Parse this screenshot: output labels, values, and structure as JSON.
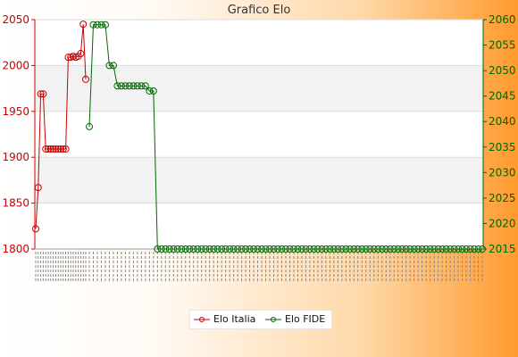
{
  "chart_data": {
    "type": "line",
    "title": "Grafico Elo",
    "legend_position": "bottom",
    "grid": true,
    "colors": {
      "italia": "#cc0000",
      "fide": "#006600"
    },
    "y_left": {
      "ticks": [
        1800,
        1850,
        1900,
        1950,
        2000,
        2050
      ],
      "range": [
        1800,
        2050
      ]
    },
    "y_right": {
      "ticks": [
        2015,
        2020,
        2025,
        2030,
        2035,
        2040,
        2045,
        2050,
        2055,
        2060
      ],
      "range": [
        2015,
        2060
      ]
    },
    "x_tick_labels_note": "illegible rotated date labels",
    "series": [
      {
        "name": "Elo Italia",
        "axis": "left",
        "values": [
          1822,
          1867,
          1969,
          1969,
          1909,
          1909,
          1909,
          1909,
          1909,
          1909,
          1909,
          1909,
          1909,
          2009,
          2009,
          2010,
          2009,
          2010,
          2013,
          2045,
          1985
        ]
      },
      {
        "name": "Elo FIDE",
        "axis": "right",
        "values": [
          2039,
          2059,
          2059,
          2059,
          2059,
          2051,
          2051,
          2047,
          2047,
          2047,
          2047,
          2047,
          2047,
          2047,
          2047,
          2046,
          2046,
          2015,
          2015,
          2015,
          2015,
          2015,
          2015,
          2015,
          2015,
          2015,
          2015,
          2015,
          2015,
          2015,
          2015,
          2015,
          2015,
          2015,
          2015,
          2015,
          2015,
          2015,
          2015,
          2015,
          2015,
          2015,
          2015,
          2015,
          2015,
          2015,
          2015,
          2015,
          2015,
          2015,
          2015,
          2015,
          2015,
          2015,
          2015,
          2015,
          2015,
          2015,
          2015,
          2015,
          2015,
          2015,
          2015,
          2015,
          2015,
          2015,
          2015,
          2015,
          2015,
          2015,
          2015,
          2015,
          2015,
          2015,
          2015,
          2015,
          2015,
          2015,
          2015,
          2015,
          2015,
          2015,
          2015,
          2015,
          2015,
          2015,
          2015,
          2015,
          2015,
          2015,
          2015,
          2015,
          2015,
          2015,
          2015,
          2015,
          2015,
          2015,
          2015
        ]
      }
    ]
  }
}
